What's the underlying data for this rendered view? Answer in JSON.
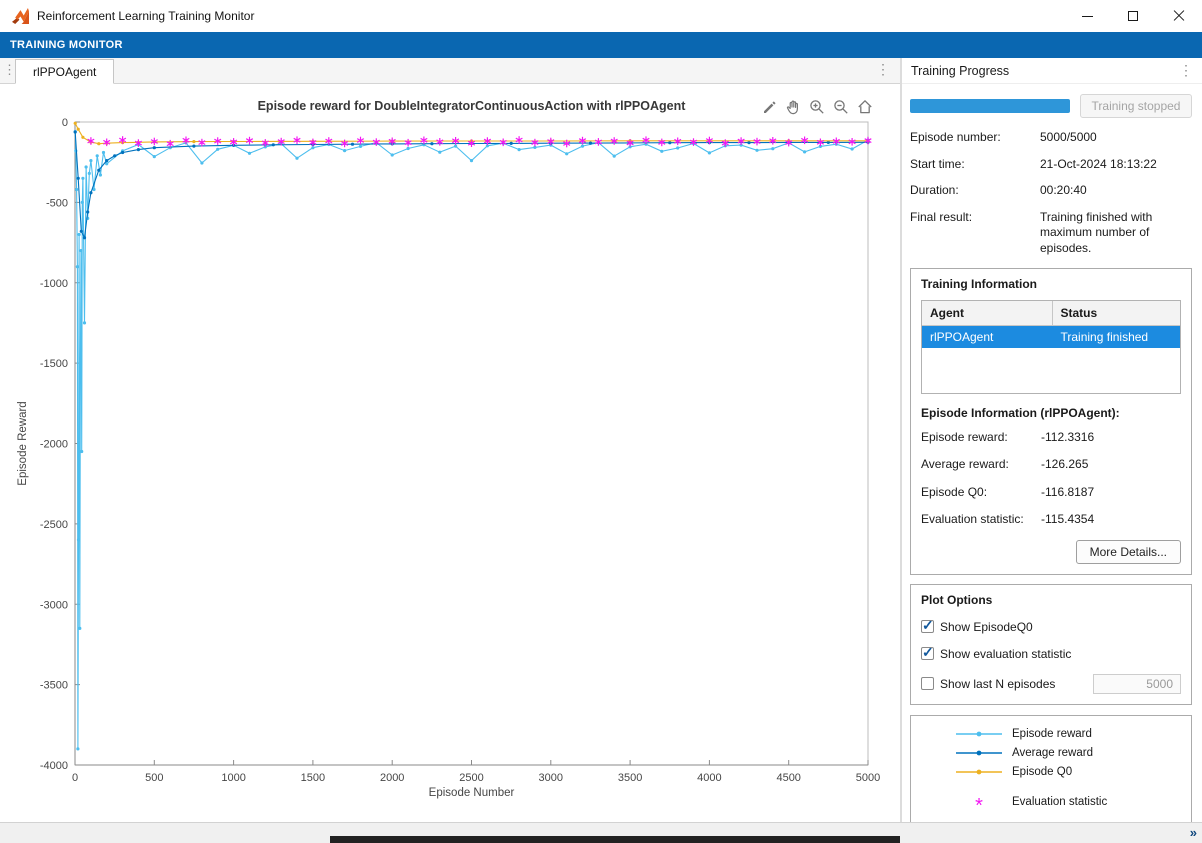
{
  "window": {
    "title": "Reinforcement Learning Training Monitor"
  },
  "ribbon": {
    "tab": "TRAINING MONITOR"
  },
  "doc": {
    "tab": "rlPPOAgent"
  },
  "chart_toolbar": {
    "icons": [
      "edit-plot",
      "pan",
      "zoom-in",
      "zoom-out",
      "home"
    ]
  },
  "chart_data": {
    "type": "line",
    "title": "Episode reward for DoubleIntegratorContinuousAction with rlPPOAgent",
    "xlabel": "Episode Number",
    "ylabel": "Episode Reward",
    "xlim": [
      0,
      5000
    ],
    "ylim": [
      -4000,
      0
    ],
    "xticks": [
      0,
      500,
      1000,
      1500,
      2000,
      2500,
      3000,
      3500,
      4000,
      4500,
      5000
    ],
    "yticks": [
      0,
      -500,
      -1000,
      -1500,
      -2000,
      -2500,
      -3000,
      -3500,
      -4000
    ],
    "grid": false,
    "series": [
      {
        "name": "Episode reward",
        "color": "#4DBEEE",
        "marker": "dot",
        "x": [
          1,
          5,
          10,
          15,
          18,
          22,
          26,
          30,
          34,
          38,
          42,
          46,
          50,
          60,
          70,
          80,
          90,
          100,
          120,
          140,
          160,
          180,
          200,
          300,
          400,
          500,
          600,
          700,
          800,
          900,
          1000,
          1100,
          1200,
          1300,
          1400,
          1500,
          1600,
          1700,
          1800,
          1900,
          2000,
          2100,
          2200,
          2300,
          2400,
          2500,
          2600,
          2700,
          2800,
          2900,
          3000,
          3100,
          3200,
          3300,
          3400,
          3500,
          3600,
          3700,
          3800,
          3900,
          4000,
          4100,
          4200,
          4300,
          4400,
          4500,
          4600,
          4700,
          4800,
          4900,
          5000
        ],
        "y": [
          -60,
          -180,
          -420,
          -900,
          -3900,
          -2600,
          -700,
          -3150,
          -1500,
          -800,
          -2050,
          -500,
          -350,
          -1250,
          -280,
          -600,
          -320,
          -240,
          -420,
          -210,
          -330,
          -190,
          -260,
          -180,
          -140,
          -215,
          -160,
          -130,
          -255,
          -170,
          -145,
          -195,
          -155,
          -135,
          -225,
          -160,
          -140,
          -178,
          -152,
          -128,
          -205,
          -165,
          -142,
          -188,
          -150,
          -240,
          -148,
          -132,
          -172,
          -158,
          -144,
          -198,
          -150,
          -128,
          -212,
          -154,
          -138,
          -182,
          -162,
          -134,
          -192,
          -148,
          -144,
          -176,
          -166,
          -130,
          -186,
          -152,
          -138,
          -168,
          -112
        ]
      },
      {
        "name": "Average reward",
        "color": "#0072BD",
        "marker": "dot",
        "x": [
          1,
          20,
          40,
          60,
          80,
          100,
          150,
          200,
          250,
          300,
          400,
          500,
          750,
          1000,
          1250,
          1500,
          1750,
          2000,
          2250,
          2500,
          2750,
          3000,
          3250,
          3500,
          3750,
          4000,
          4250,
          4500,
          4750,
          5000
        ],
        "y": [
          -62,
          -350,
          -680,
          -720,
          -560,
          -440,
          -300,
          -240,
          -210,
          -190,
          -172,
          -160,
          -150,
          -145,
          -142,
          -140,
          -138,
          -136,
          -135,
          -134,
          -133,
          -132,
          -131,
          -130,
          -129,
          -128,
          -128,
          -127,
          -127,
          -126.3
        ]
      },
      {
        "name": "Episode Q0",
        "color": "#EDB120",
        "marker": "dot",
        "x": [
          1,
          20,
          50,
          100,
          150,
          200,
          300,
          400,
          500,
          750,
          1000,
          1500,
          2000,
          2500,
          3000,
          3500,
          4000,
          4500,
          5000
        ],
        "y": [
          -8,
          -45,
          -95,
          -125,
          -135,
          -132,
          -128,
          -126,
          -124,
          -122,
          -121,
          -120,
          -119,
          -118,
          -118,
          -117,
          -117,
          -117,
          -116.8
        ]
      },
      {
        "name": "Evaluation statistic",
        "color": "#F318F3",
        "marker": "asterisk",
        "x": [
          100,
          200,
          300,
          400,
          500,
          600,
          700,
          800,
          900,
          1000,
          1100,
          1200,
          1300,
          1400,
          1500,
          1600,
          1700,
          1800,
          1900,
          2000,
          2100,
          2200,
          2300,
          2400,
          2500,
          2600,
          2700,
          2800,
          2900,
          3000,
          3100,
          3200,
          3300,
          3400,
          3500,
          3600,
          3700,
          3800,
          3900,
          4000,
          4100,
          4200,
          4300,
          4400,
          4500,
          4600,
          4700,
          4800,
          4900,
          5000
        ],
        "y": [
          -118,
          -126,
          -112,
          -131,
          -121,
          -135,
          -114,
          -128,
          -119,
          -124,
          -116,
          -130,
          -122,
          -113,
          -127,
          -118,
          -133,
          -115,
          -125,
          -120,
          -129,
          -114,
          -123,
          -117,
          -132,
          -119,
          -126,
          -112,
          -128,
          -121,
          -134,
          -116,
          -124,
          -118,
          -130,
          -113,
          -127,
          -120,
          -125,
          -115,
          -131,
          -119,
          -122,
          -117,
          -128,
          -114,
          -126,
          -120,
          -123,
          -115.4
        ]
      }
    ]
  },
  "right_panel": {
    "title": "Training Progress",
    "stop_button": "Training stopped",
    "progress_percent": 100,
    "fields": [
      {
        "label": "Episode number:",
        "value": "5000/5000"
      },
      {
        "label": "Start time:",
        "value": "21-Oct-2024 18:13:22"
      },
      {
        "label": "Duration:",
        "value": "00:20:40"
      },
      {
        "label": "Final result:",
        "value": "Training finished with maximum number of episodes."
      }
    ],
    "training_info": {
      "title": "Training Information",
      "table": {
        "headers": [
          "Agent",
          "Status"
        ],
        "rows": [
          [
            "rlPPOAgent",
            "Training finished"
          ]
        ]
      },
      "episode_info_title": "Episode Information (rlPPOAgent):",
      "stats": [
        {
          "label": "Episode reward:",
          "value": "-112.3316"
        },
        {
          "label": "Average reward:",
          "value": "-126.265"
        },
        {
          "label": "Episode Q0:",
          "value": "-116.8187"
        },
        {
          "label": "Evaluation statistic:",
          "value": "-115.4354"
        }
      ],
      "more_details_button": "More Details..."
    },
    "plot_options": {
      "title": "Plot Options",
      "checkboxes": [
        {
          "label": "Show EpisodeQ0",
          "checked": true
        },
        {
          "label": "Show evaluation statistic",
          "checked": true
        },
        {
          "label": "Show last N episodes",
          "checked": false
        }
      ],
      "last_n_value": "5000"
    },
    "legend": {
      "items": [
        {
          "label": "Episode reward",
          "color": "#4DBEEE",
          "marker": "line-dot"
        },
        {
          "label": "Average reward",
          "color": "#0072BD",
          "marker": "line-dot"
        },
        {
          "label": "Episode Q0",
          "color": "#EDB120",
          "marker": "line-dot"
        },
        {
          "label": "Evaluation statistic",
          "color": "#F318F3",
          "marker": "asterisk",
          "marker_glyph": "*"
        }
      ]
    }
  }
}
